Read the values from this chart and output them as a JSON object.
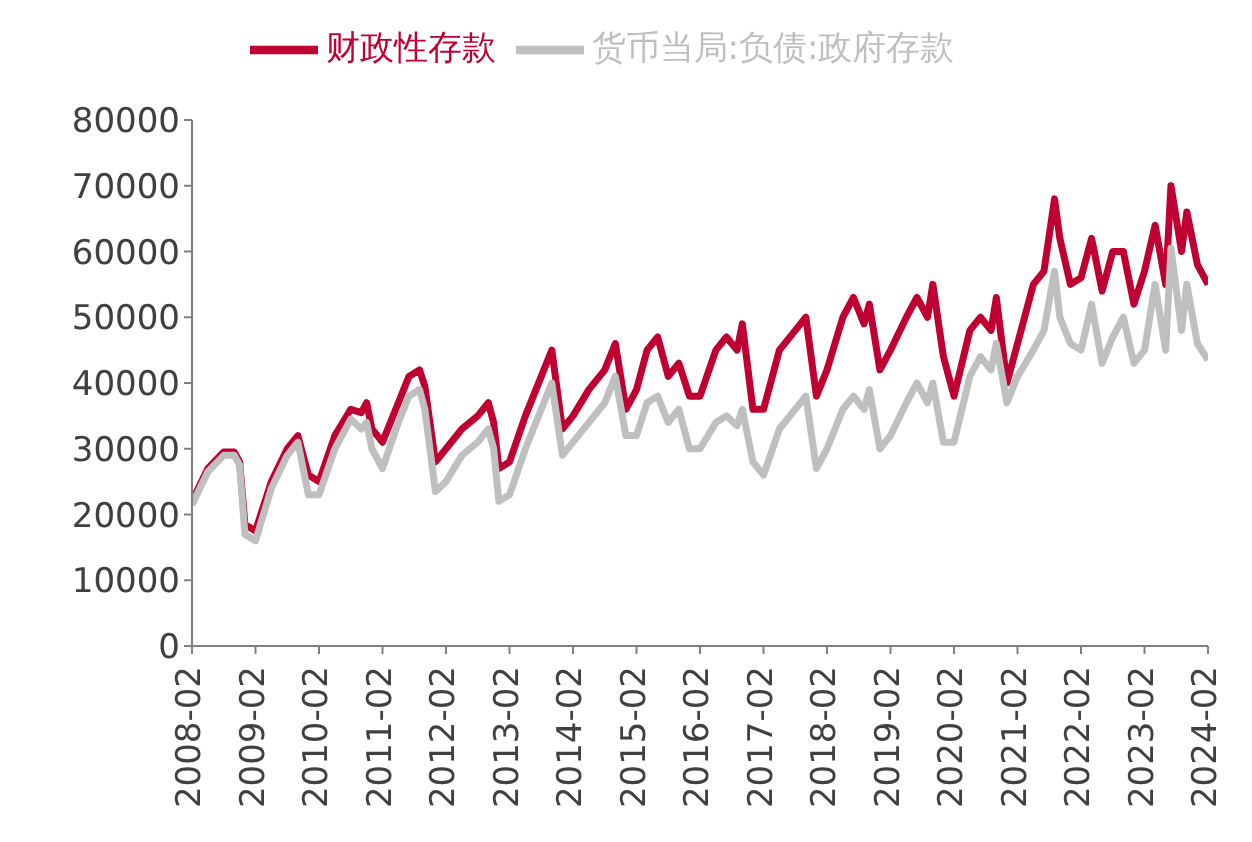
{
  "chart_data": {
    "type": "line",
    "x": [
      "2008-02",
      "2008-05",
      "2008-08",
      "2008-10",
      "2008-11",
      "2008-12",
      "2009-02",
      "2009-05",
      "2009-08",
      "2009-10",
      "2009-12",
      "2010-02",
      "2010-05",
      "2010-08",
      "2010-10",
      "2010-11",
      "2010-12",
      "2011-02",
      "2011-05",
      "2011-07",
      "2011-09",
      "2011-10",
      "2011-12",
      "2012-02",
      "2012-05",
      "2012-08",
      "2012-10",
      "2012-11",
      "2012-12",
      "2013-02",
      "2013-05",
      "2013-08",
      "2013-10",
      "2013-12",
      "2014-02",
      "2014-05",
      "2014-08",
      "2014-10",
      "2014-12",
      "2015-02",
      "2015-04",
      "2015-06",
      "2015-08",
      "2015-10",
      "2015-12",
      "2016-02",
      "2016-05",
      "2016-07",
      "2016-09",
      "2016-10",
      "2016-12",
      "2017-02",
      "2017-05",
      "2017-08",
      "2017-10",
      "2017-12",
      "2018-02",
      "2018-05",
      "2018-07",
      "2018-09",
      "2018-10",
      "2018-12",
      "2019-02",
      "2019-05",
      "2019-07",
      "2019-09",
      "2019-10",
      "2019-12",
      "2020-02",
      "2020-05",
      "2020-07",
      "2020-09",
      "2020-10",
      "2020-12",
      "2021-02",
      "2021-05",
      "2021-07",
      "2021-09",
      "2021-10",
      "2021-12",
      "2022-02",
      "2022-04",
      "2022-06",
      "2022-08",
      "2022-10",
      "2022-12",
      "2023-02",
      "2023-04",
      "2023-06",
      "2023-07",
      "2023-09",
      "2023-10",
      "2023-12",
      "2024-02"
    ],
    "series": [
      {
        "name": "财政性存款",
        "color": "#c00030",
        "values": [
          22000,
          27000,
          29500,
          29500,
          28000,
          18500,
          17500,
          25000,
          30000,
          32000,
          26000,
          25000,
          32000,
          36000,
          35500,
          37000,
          33000,
          31000,
          37000,
          41000,
          42000,
          39500,
          28000,
          30000,
          33000,
          35000,
          37000,
          34000,
          27000,
          28000,
          35000,
          41000,
          45000,
          33000,
          35000,
          39000,
          42000,
          46000,
          36000,
          39000,
          45000,
          47000,
          41000,
          43000,
          38000,
          38000,
          45000,
          47000,
          45000,
          49000,
          36000,
          36000,
          45000,
          48000,
          50000,
          38000,
          42000,
          50000,
          53000,
          49000,
          52000,
          42000,
          45000,
          50000,
          53000,
          50000,
          55000,
          44000,
          38000,
          48000,
          50000,
          48000,
          53000,
          40000,
          46000,
          55000,
          57000,
          68000,
          62000,
          55000,
          56000,
          62000,
          54000,
          60000,
          60000,
          52000,
          57000,
          64000,
          55000,
          70000,
          60000,
          66000,
          58000,
          55000
        ]
      },
      {
        "name": "货币当局:负债:政府存款",
        "color": "#bfbfbf",
        "values": [
          21500,
          26500,
          29000,
          29000,
          27500,
          17000,
          16000,
          24000,
          29000,
          31000,
          23000,
          23000,
          30000,
          34500,
          33000,
          34000,
          30000,
          27000,
          34000,
          38000,
          39000,
          36000,
          23500,
          25000,
          29000,
          31000,
          33000,
          30000,
          22000,
          23000,
          30000,
          36000,
          40000,
          29000,
          31000,
          34000,
          37000,
          41000,
          32000,
          32000,
          37000,
          38000,
          34000,
          36000,
          30000,
          30000,
          34000,
          35000,
          33500,
          36000,
          28000,
          26000,
          33000,
          36000,
          38000,
          27000,
          30000,
          36000,
          38000,
          36000,
          39000,
          30000,
          32000,
          37000,
          40000,
          37000,
          40000,
          31000,
          31000,
          41000,
          44000,
          42000,
          46000,
          37000,
          41000,
          45000,
          48000,
          57000,
          50000,
          46000,
          45000,
          52000,
          43000,
          47000,
          50000,
          43000,
          45000,
          55000,
          45000,
          60500,
          48000,
          55000,
          46000,
          43500
        ]
      }
    ],
    "xlim": [
      "2008-02",
      "2024-02"
    ],
    "xticks": [
      "2008-02",
      "2009-02",
      "2010-02",
      "2011-02",
      "2012-02",
      "2013-02",
      "2014-02",
      "2015-02",
      "2016-02",
      "2017-02",
      "2018-02",
      "2019-02",
      "2020-02",
      "2021-02",
      "2022-02",
      "2023-02",
      "2024-02"
    ],
    "ylim": [
      0,
      80000
    ],
    "yticks": [
      0,
      10000,
      20000,
      30000,
      40000,
      50000,
      60000,
      70000,
      80000
    ],
    "legend": "top",
    "grid": false,
    "marker": "none",
    "line_style": "solid"
  }
}
